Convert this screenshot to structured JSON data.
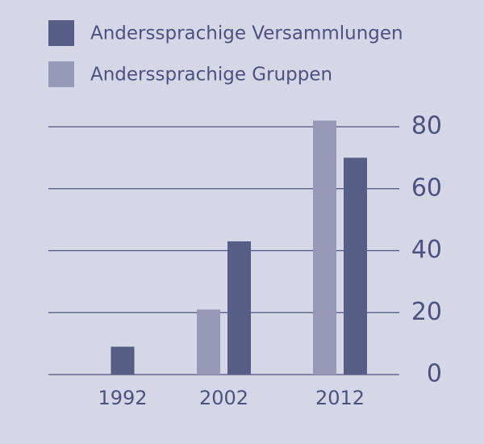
{
  "chart_data": {
    "type": "bar",
    "categories": [
      "1992",
      "2002",
      "2012"
    ],
    "series": [
      {
        "name": "Anderssprachige Versammlungen",
        "color": "#575e86",
        "values": [
          9,
          43,
          70
        ]
      },
      {
        "name": "Anderssprachige Gruppen",
        "color": "#9599b5",
        "values": [
          null,
          21,
          82
        ]
      }
    ],
    "ylim": [
      0,
      80
    ],
    "yticks": [
      0,
      20,
      40,
      60,
      80
    ],
    "grid": true
  }
}
